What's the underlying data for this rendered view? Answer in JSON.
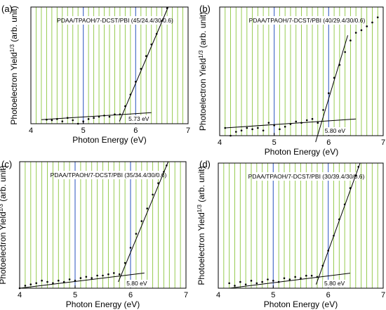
{
  "figure": {
    "panels": [
      {
        "letter": "(a)",
        "chart_data": {
          "type": "scatter",
          "title": "PDAA/TPAOH/7-DCST/PBI (45/24.4/30/0.6)",
          "xlabel": "Photon Energy (eV)",
          "ylabel": "Photoelectron Yield^{1/3} (arb. unit)",
          "xlim": [
            4,
            7
          ],
          "ylim": [
            0,
            1
          ],
          "xticks": [
            4,
            5,
            6,
            7
          ],
          "grid": "vertical lines every 0.1 eV (green), blue at 5 and 6 eV",
          "threshold_label": "5.73 eV",
          "threshold": 5.73,
          "baseline_fit": {
            "x": [
              4.2,
              6.3
            ],
            "y": [
              0.035,
              0.095
            ]
          },
          "rise_fit": {
            "x": [
              5.69,
              6.62
            ],
            "y": [
              0.02,
              1.0
            ]
          },
          "points": {
            "x": [
              4.3,
              4.4,
              4.5,
              4.6,
              4.7,
              4.8,
              4.9,
              5.0,
              5.1,
              5.2,
              5.3,
              5.4,
              5.5,
              5.6,
              5.7,
              5.8,
              5.9,
              6.0,
              6.1,
              6.2,
              6.3,
              6.4,
              6.5,
              6.6
            ],
            "y": [
              0.035,
              0.03,
              0.04,
              0.02,
              0.05,
              0.03,
              0.0,
              0.02,
              0.04,
              0.05,
              0.06,
              0.07,
              0.06,
              0.08,
              0.08,
              0.15,
              0.25,
              0.36,
              0.47,
              0.58,
              0.68,
              0.77,
              0.88,
              0.99
            ]
          }
        }
      },
      {
        "letter": "(b)",
        "chart_data": {
          "type": "scatter",
          "title": "PDAA/TPAOH/7-DCST/PBI (40/29.4/30/0.6)",
          "xlabel": "Photon Energy (eV)",
          "ylabel": "Photoelectron Yield^{1/3} (arb. unit)",
          "xlim": [
            4,
            7
          ],
          "ylim": [
            0,
            1
          ],
          "xticks": [
            4,
            5,
            6,
            7
          ],
          "grid": "vertical lines every 0.1 eV (green), blue at 5 and 6 eV",
          "threshold_label": "5.80 eV",
          "threshold": 5.8,
          "baseline_fit": {
            "x": [
              4.1,
              6.5
            ],
            "y": [
              0.06,
              0.13
            ]
          },
          "rise_fit": {
            "x": [
              5.76,
              6.35
            ],
            "y": [
              -0.05,
              0.78
            ]
          },
          "points": {
            "x": [
              4.1,
              4.2,
              4.3,
              4.4,
              4.5,
              4.6,
              4.7,
              4.8,
              4.9,
              5.0,
              5.1,
              5.2,
              5.3,
              5.4,
              5.5,
              5.6,
              5.7,
              5.8,
              5.9,
              6.0,
              6.1,
              6.2,
              6.3,
              6.4,
              6.5,
              6.6,
              6.7,
              6.8,
              6.9
            ],
            "y": [
              0.06,
              0.0,
              0.03,
              0.04,
              0.06,
              0.05,
              0.06,
              0.04,
              0.1,
              0.08,
              0.05,
              0.07,
              0.09,
              0.11,
              0.1,
              0.12,
              0.13,
              0.1,
              0.2,
              0.33,
              0.45,
              0.55,
              0.65,
              0.74,
              0.8,
              0.82,
              0.85,
              0.88,
              0.92
            ]
          }
        }
      },
      {
        "letter": "(c)",
        "chart_data": {
          "type": "scatter",
          "title": "PDAA/TPAOH/7-DCST/PBI (35/34.4/30/0.6)",
          "xlabel": "Photon Energy (eV)",
          "ylabel": "Photoelectron Yield^{1/3} (arb. unit)",
          "xlim": [
            4,
            7
          ],
          "ylim": [
            0,
            1
          ],
          "xticks": [
            4,
            5,
            6,
            7
          ],
          "grid": "vertical lines every 0.1 eV (green), blue at 5 and 6 eV",
          "threshold_label": "5.80 eV",
          "threshold": 5.8,
          "baseline_fit": {
            "x": [
              4.0,
              6.25
            ],
            "y": [
              0.0,
              0.12
            ]
          },
          "rise_fit": {
            "x": [
              5.78,
              6.68
            ],
            "y": [
              0.05,
              1.0
            ]
          },
          "points": {
            "x": [
              4.0,
              4.1,
              4.2,
              4.3,
              4.4,
              4.5,
              4.6,
              4.7,
              4.8,
              4.9,
              5.0,
              5.1,
              5.2,
              5.3,
              5.4,
              5.5,
              5.6,
              5.7,
              5.8,
              5.9,
              6.0,
              6.1,
              6.2,
              6.3,
              6.4,
              6.5,
              6.6,
              6.65
            ],
            "y": [
              0.0,
              0.02,
              0.03,
              0.04,
              0.06,
              0.05,
              0.04,
              0.06,
              0.05,
              0.07,
              0.06,
              0.08,
              0.09,
              0.08,
              0.1,
              0.1,
              0.11,
              0.12,
              0.11,
              0.2,
              0.32,
              0.43,
              0.53,
              0.63,
              0.74,
              0.83,
              0.92,
              0.97
            ]
          }
        }
      },
      {
        "letter": "(d)",
        "chart_data": {
          "type": "scatter",
          "title": "PDAA/TPAOH/7-DCST/PBI (30/39.4/30/0.6)",
          "xlabel": "Photon Energy (eV)",
          "ylabel": "Photoelectron Yield^{1/3} (arb. unit)",
          "xlim": [
            4,
            7
          ],
          "ylim": [
            0,
            1
          ],
          "xticks": [
            4,
            5,
            6,
            7
          ],
          "grid": "vertical lines every 0.1 eV (green), blue at 5 and 6 eV",
          "threshold_label": "5.80 eV",
          "threshold": 5.8,
          "baseline_fit": {
            "x": [
              4.2,
              6.4
            ],
            "y": [
              0.0,
              0.12
            ]
          },
          "rise_fit": {
            "x": [
              5.78,
              6.58
            ],
            "y": [
              0.03,
              1.0
            ]
          },
          "points": {
            "x": [
              4.2,
              4.3,
              4.4,
              4.5,
              4.6,
              4.7,
              4.8,
              4.9,
              5.0,
              5.1,
              5.2,
              5.3,
              5.4,
              5.5,
              5.6,
              5.7,
              5.8,
              5.9,
              6.0,
              6.1,
              6.2,
              6.3,
              6.4,
              6.5,
              6.55
            ],
            "y": [
              0.04,
              0.02,
              0.05,
              0.03,
              0.06,
              0.04,
              0.05,
              0.07,
              0.06,
              0.05,
              0.08,
              0.07,
              0.09,
              0.08,
              0.1,
              0.1,
              0.09,
              0.18,
              0.3,
              0.42,
              0.55,
              0.67,
              0.8,
              0.9,
              0.97
            ]
          }
        }
      }
    ]
  }
}
